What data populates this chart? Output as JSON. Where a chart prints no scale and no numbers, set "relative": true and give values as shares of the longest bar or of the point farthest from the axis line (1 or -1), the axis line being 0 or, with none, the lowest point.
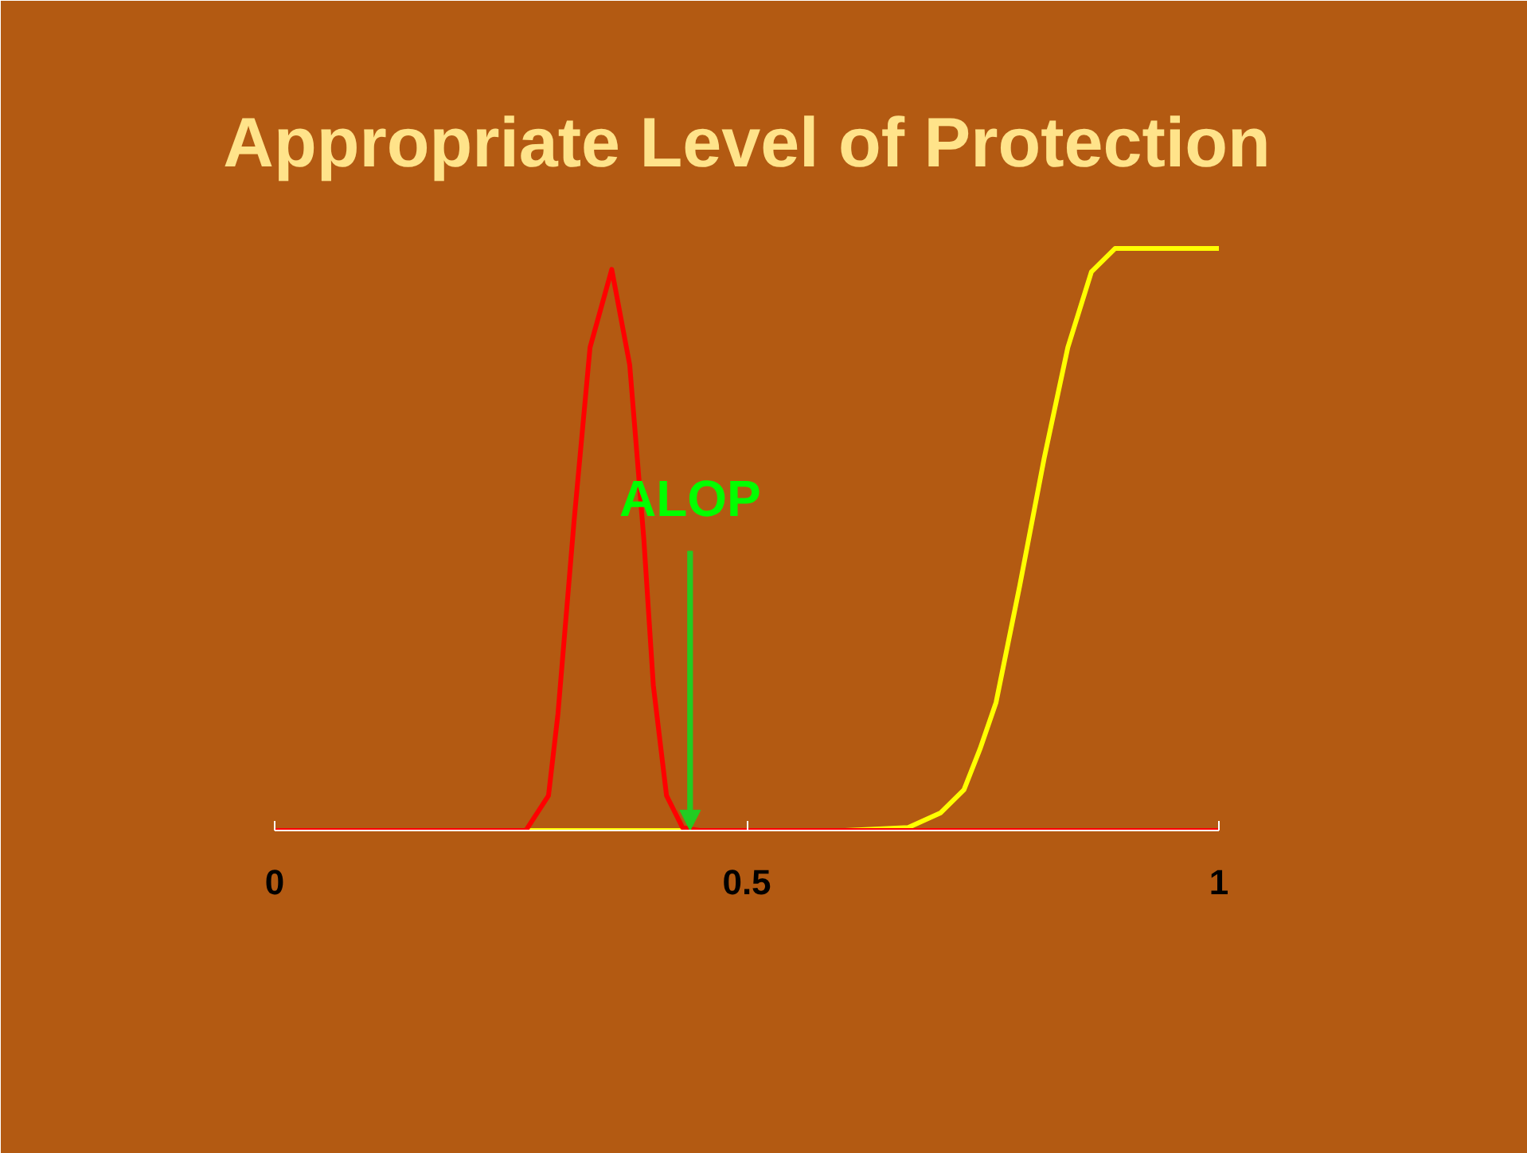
{
  "chart_data": {
    "type": "line",
    "title": "Appropriate Level of Protection",
    "relative": true,
    "xlim": [
      0,
      1
    ],
    "xticks": [
      0,
      0.5,
      1
    ],
    "grid": false,
    "marker": "none",
    "line_style": "solid",
    "ref_lines": [
      {
        "axis": "x",
        "value": 0.44,
        "label": "ALOP",
        "color": "#22cc22"
      }
    ],
    "series": [
      {
        "color": "#ffff00",
        "x": [
          0,
          0.3,
          0.604,
          0.671,
          0.705,
          0.73,
          0.747,
          0.764,
          0.789,
          0.815,
          0.84,
          0.865,
          0.89,
          0.907,
          1.0
        ],
        "values": [
          0,
          0,
          0,
          0.005,
          0.03,
          0.07,
          0.14,
          0.22,
          0.42,
          0.64,
          0.83,
          0.96,
          1,
          1,
          1
        ]
      },
      {
        "color": "#ff0000",
        "x": [
          0,
          0.266,
          0.29,
          0.3,
          0.317,
          0.334,
          0.357,
          0.376,
          0.391,
          0.401,
          0.415,
          0.432,
          0.45,
          1.0
        ],
        "values": [
          0,
          0,
          0.06,
          0.2,
          0.53,
          0.83,
          0.964,
          0.8,
          0.5,
          0.25,
          0.06,
          0.005,
          0,
          0
        ]
      }
    ]
  }
}
